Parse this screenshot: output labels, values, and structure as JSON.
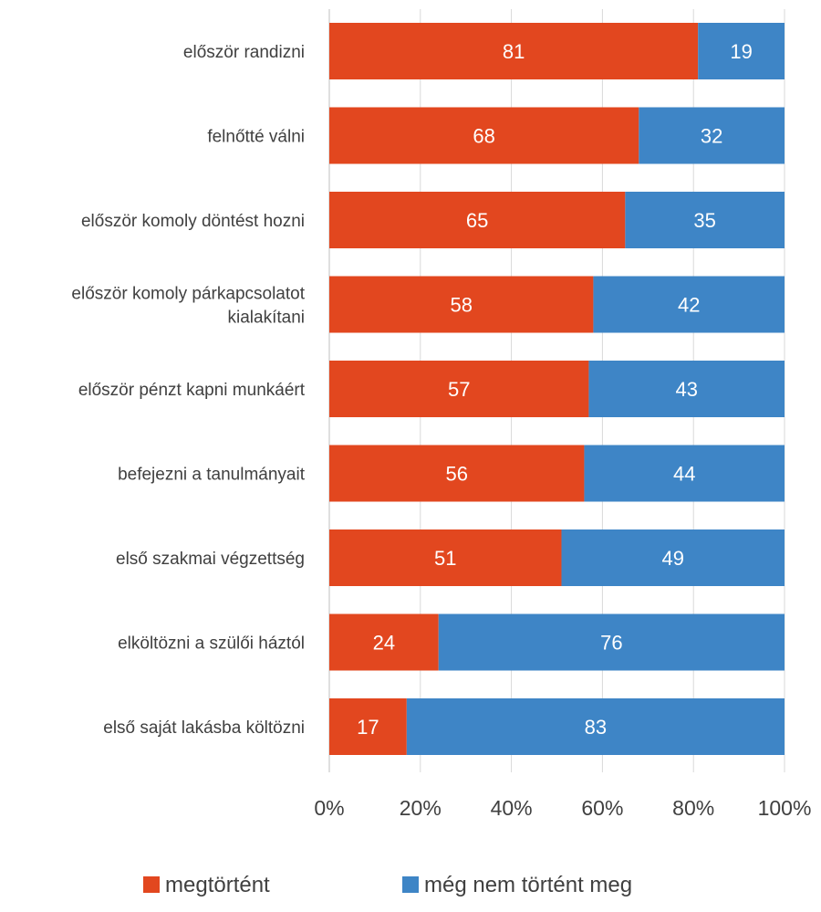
{
  "chart_data": {
    "type": "bar",
    "orientation": "horizontal",
    "stacked": true,
    "percent_stacked": true,
    "categories": [
      [
        "először randizni"
      ],
      [
        "felnőtté válni"
      ],
      [
        "először komoly döntést hozni"
      ],
      [
        "először komoly párkapcsolatot",
        "kialakítani"
      ],
      [
        "először pénzt kapni munkáért"
      ],
      [
        "befejezni a tanulmányait"
      ],
      [
        "első szakmai végzettség"
      ],
      [
        "elköltözni a szülői háztól"
      ],
      [
        "első saját lakásba költözni"
      ]
    ],
    "series": [
      {
        "name": "megtörtént",
        "color": "#E2471F",
        "values": [
          81,
          68,
          65,
          58,
          57,
          56,
          51,
          24,
          17
        ]
      },
      {
        "name": "még nem történt meg",
        "color": "#3E85C6",
        "values": [
          19,
          32,
          35,
          42,
          43,
          44,
          49,
          76,
          83
        ]
      }
    ],
    "xlim": [
      0,
      100
    ],
    "x_ticks": [
      "0%",
      "20%",
      "40%",
      "60%",
      "80%",
      "100%"
    ],
    "data_labels": true,
    "grid": "vertical",
    "legend_position": "bottom"
  }
}
